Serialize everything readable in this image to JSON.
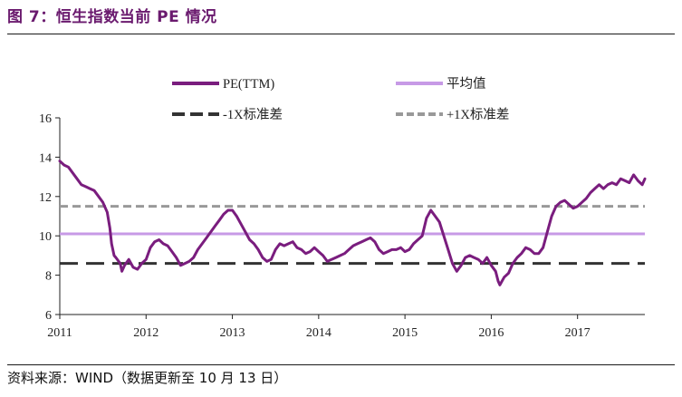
{
  "header": {
    "title": "图 7：恒生指数当前 PE 情况"
  },
  "footer": {
    "source": "资料来源：WIND（数据更新至 10 月 13 日）"
  },
  "chart_data": {
    "type": "line",
    "ylim": [
      6,
      16
    ],
    "yticks": [
      "6",
      "8",
      "10",
      "12",
      "14",
      "16"
    ],
    "xlim": [
      2011,
      2017.78
    ],
    "xticks": [
      "2011",
      "2012",
      "2013",
      "2014",
      "2015",
      "2016",
      "2017"
    ],
    "grid": false,
    "legend_position": "top",
    "series": [
      {
        "name": "PE(TTM)",
        "color": "#7a1d7e",
        "x": [
          2011.0,
          2011.05,
          2011.1,
          2011.15,
          2011.2,
          2011.25,
          2011.3,
          2011.35,
          2011.4,
          2011.45,
          2011.5,
          2011.55,
          2011.58,
          2011.6,
          2011.63,
          2011.65,
          2011.7,
          2011.72,
          2011.75,
          2011.8,
          2011.85,
          2011.9,
          2011.95,
          2012.0,
          2012.05,
          2012.1,
          2012.15,
          2012.2,
          2012.25,
          2012.3,
          2012.35,
          2012.4,
          2012.45,
          2012.5,
          2012.55,
          2012.6,
          2012.65,
          2012.7,
          2012.75,
          2012.8,
          2012.85,
          2012.9,
          2012.95,
          2013.0,
          2013.05,
          2013.1,
          2013.15,
          2013.2,
          2013.25,
          2013.3,
          2013.35,
          2013.4,
          2013.45,
          2013.5,
          2013.55,
          2013.6,
          2013.65,
          2013.7,
          2013.75,
          2013.8,
          2013.85,
          2013.9,
          2013.95,
          2014.0,
          2014.05,
          2014.1,
          2014.15,
          2014.2,
          2014.25,
          2014.3,
          2014.35,
          2014.4,
          2014.45,
          2014.5,
          2014.55,
          2014.6,
          2014.65,
          2014.7,
          2014.75,
          2014.8,
          2014.85,
          2014.9,
          2014.95,
          2015.0,
          2015.05,
          2015.1,
          2015.15,
          2015.2,
          2015.25,
          2015.3,
          2015.35,
          2015.4,
          2015.45,
          2015.5,
          2015.55,
          2015.6,
          2015.65,
          2015.7,
          2015.75,
          2015.8,
          2015.85,
          2015.9,
          2015.95,
          2016.0,
          2016.05,
          2016.08,
          2016.1,
          2016.15,
          2016.2,
          2016.25,
          2016.3,
          2016.35,
          2016.4,
          2016.45,
          2016.5,
          2016.55,
          2016.6,
          2016.65,
          2016.7,
          2016.75,
          2016.8,
          2016.85,
          2016.9,
          2016.95,
          2017.0,
          2017.05,
          2017.1,
          2017.15,
          2017.2,
          2017.25,
          2017.3,
          2017.35,
          2017.4,
          2017.45,
          2017.5,
          2017.55,
          2017.6,
          2017.65,
          2017.7,
          2017.75,
          2017.78
        ],
        "y": [
          13.8,
          13.6,
          13.5,
          13.2,
          12.9,
          12.6,
          12.5,
          12.4,
          12.3,
          12.0,
          11.7,
          11.2,
          10.4,
          9.6,
          9.0,
          8.9,
          8.6,
          8.2,
          8.5,
          8.8,
          8.4,
          8.3,
          8.6,
          8.8,
          9.4,
          9.7,
          9.8,
          9.6,
          9.5,
          9.2,
          8.9,
          8.5,
          8.6,
          8.7,
          8.9,
          9.3,
          9.6,
          9.9,
          10.2,
          10.5,
          10.8,
          11.1,
          11.3,
          11.3,
          11.0,
          10.6,
          10.2,
          9.8,
          9.6,
          9.3,
          8.9,
          8.7,
          8.8,
          9.3,
          9.6,
          9.5,
          9.6,
          9.7,
          9.4,
          9.3,
          9.1,
          9.2,
          9.4,
          9.2,
          9.0,
          8.7,
          8.8,
          8.9,
          9.0,
          9.1,
          9.3,
          9.5,
          9.6,
          9.7,
          9.8,
          9.9,
          9.7,
          9.3,
          9.1,
          9.2,
          9.3,
          9.3,
          9.4,
          9.2,
          9.3,
          9.6,
          9.8,
          10.0,
          10.9,
          11.3,
          11.0,
          10.7,
          10.0,
          9.3,
          8.6,
          8.2,
          8.5,
          8.9,
          9.0,
          8.9,
          8.8,
          8.6,
          8.9,
          8.5,
          8.2,
          7.7,
          7.5,
          7.9,
          8.1,
          8.6,
          8.9,
          9.1,
          9.4,
          9.3,
          9.1,
          9.1,
          9.4,
          10.2,
          11.0,
          11.5,
          11.7,
          11.8,
          11.6,
          11.4,
          11.5,
          11.7,
          11.9,
          12.2,
          12.4,
          12.6,
          12.4,
          12.6,
          12.7,
          12.6,
          12.9,
          12.8,
          12.7,
          13.1,
          12.8,
          12.6,
          12.9
        ]
      },
      {
        "name": "平均值",
        "color": "#c79ae6",
        "value": 10.1
      },
      {
        "name": "-1X标准差",
        "color": "#333333",
        "value": 8.6
      },
      {
        "name": "+1X标准差",
        "color": "#999999",
        "value": 11.5
      }
    ]
  }
}
